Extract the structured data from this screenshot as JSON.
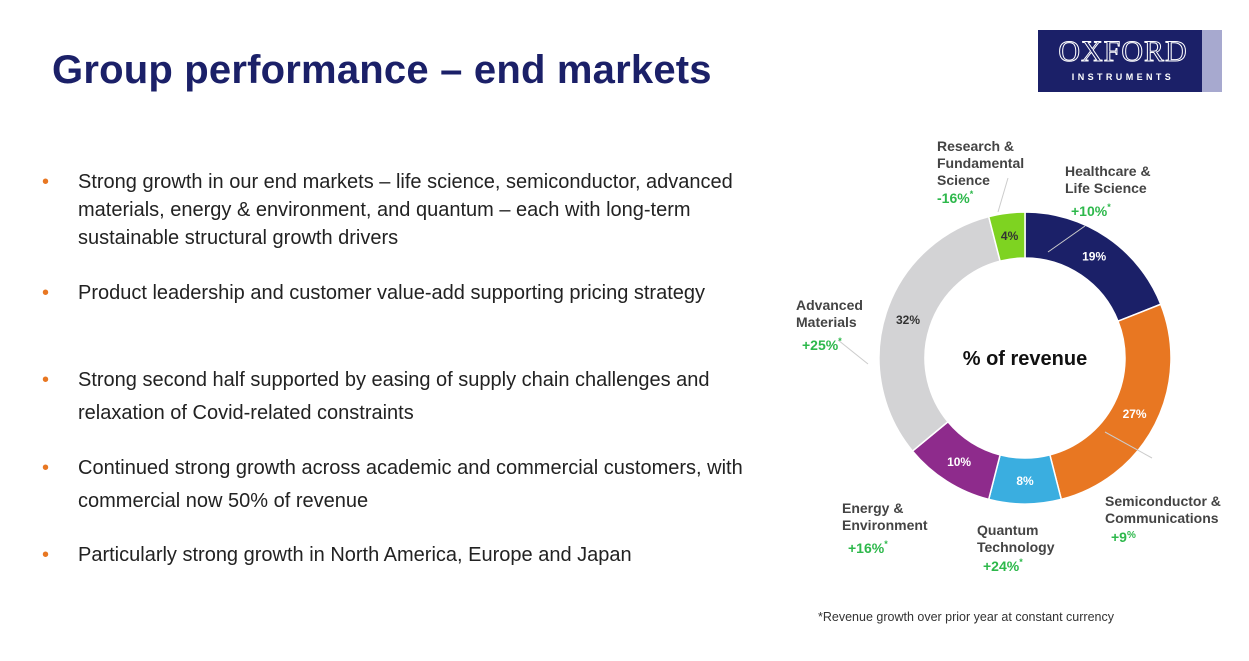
{
  "header": {
    "title": "Group performance – end markets",
    "logo": {
      "line1": "OXFORD",
      "line2": "INSTRUMENTS"
    }
  },
  "bullets": [
    "Strong growth in our end markets – life science, semiconductor, advanced materials, energy & environment, and quantum –  each with long-term sustainable structural growth drivers",
    "Product leadership and customer value-add supporting pricing strategy",
    "Strong second half supported by easing of supply chain challenges and relaxation of Covid-related constraints",
    "Continued strong growth across academic and commercial customers, with commercial now 50% of revenue",
    "Particularly strong growth in North America, Europe and Japan"
  ],
  "colors": {
    "title": "#1b2068",
    "bullet_marker": "#e87722",
    "growth_text": "#2db84b",
    "label_text": "#444444"
  },
  "chart_data": {
    "type": "pie",
    "style": "donut",
    "center_label": "% of revenue",
    "slices": [
      {
        "name": "Healthcare & Life Science",
        "value": 19,
        "value_label": "19%",
        "growth": "+10%*",
        "color": "#1b2068"
      },
      {
        "name": "Semiconductor & Communications",
        "value": 27,
        "value_label": "27%",
        "growth": "+9%",
        "color": "#e87722"
      },
      {
        "name": "Quantum Technology",
        "value": 8,
        "value_label": "8%",
        "growth": "+24%*",
        "color": "#3aaee0"
      },
      {
        "name": "Energy & Environment",
        "value": 10,
        "value_label": "10%",
        "growth": "+16%*",
        "color": "#8e2b8c"
      },
      {
        "name": "Advanced Materials",
        "value": 32,
        "value_label": "32%",
        "growth": "+25%*",
        "color": "#d3d3d5"
      },
      {
        "name": "Research & Fundamental Science",
        "value": 4,
        "value_label": "4%",
        "growth": "-16%*",
        "color": "#7ed321"
      }
    ],
    "footnote": "*Revenue growth over prior year at constant currency"
  }
}
